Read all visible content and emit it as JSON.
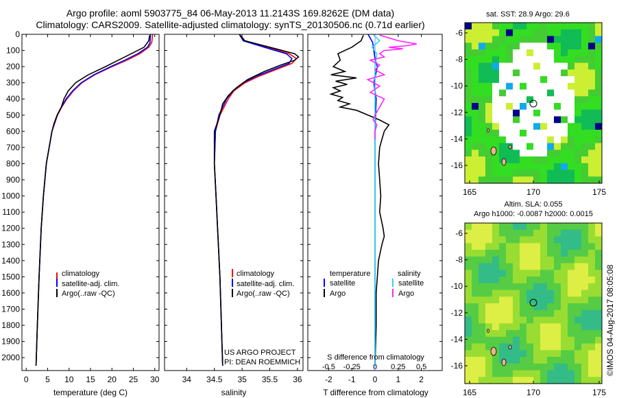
{
  "header": {
    "line1": "Argo profile: aoml 5903775_84 06-May-2013 11.2143S 169.8262E (DM data)",
    "line2": "Climatology: CARS2009. Satellite-adjusted climatology: synTS_20130506.nc (0.71d earlier)"
  },
  "colors": {
    "climatology": "#ff0000",
    "satellite": "#0000ff",
    "argo": "#000000",
    "sal_satellite": "#22ddee",
    "sal_argo": "#ff22ff",
    "map_green": "#33cc33",
    "land": "#e8b48a"
  },
  "chart_data": [
    {
      "type": "line",
      "name": "temperature-profile",
      "xlabel": "temperature (deg C)",
      "ylabel": "",
      "xlim": [
        -1,
        31
      ],
      "ylim": [
        2080,
        0
      ],
      "xticks": [
        0,
        5,
        10,
        15,
        20,
        25,
        30
      ],
      "yticks": [
        0,
        100,
        200,
        300,
        400,
        500,
        600,
        700,
        800,
        900,
        1000,
        1100,
        1200,
        1300,
        1400,
        1500,
        1600,
        1700,
        1800,
        1900,
        2000
      ],
      "legend": [
        "climatology",
        "satellite-adj. clim.",
        "Argo(..raw -QC)"
      ],
      "series": [
        {
          "name": "climatology",
          "depth": [
            0,
            50,
            80,
            120,
            160,
            200,
            250,
            300,
            350,
            400,
            450,
            500,
            600,
            800,
            1000,
            1200,
            1500,
            1800,
            2050
          ],
          "values": [
            29.5,
            29.3,
            28.6,
            26.5,
            23.5,
            20,
            16,
            13,
            11,
            9.5,
            8.3,
            7.3,
            6,
            4.7,
            4,
            3.5,
            3,
            2.6,
            2.3
          ]
        },
        {
          "name": "satellite-adj. clim.",
          "depth": [
            0,
            50,
            80,
            120,
            160,
            200,
            250,
            300,
            350,
            400,
            450,
            500,
            600,
            800,
            1000,
            1200,
            1500,
            1800,
            2050
          ],
          "values": [
            29,
            28.9,
            28.3,
            26,
            23,
            19.7,
            15.8,
            12.8,
            10.8,
            9.3,
            8.2,
            7.2,
            6,
            4.7,
            4,
            3.5,
            3,
            2.6,
            2.3
          ]
        },
        {
          "name": "Argo(..raw -QC)",
          "depth": [
            5,
            40,
            80,
            120,
            160,
            200,
            250,
            300,
            350,
            400,
            450,
            500,
            550,
            600,
            800,
            1000,
            1200,
            1500,
            1800,
            2050
          ],
          "values": [
            28.8,
            28.6,
            27.5,
            24.5,
            21.5,
            18.5,
            14.5,
            11.5,
            9.8,
            8.8,
            8.2,
            7.2,
            6.5,
            6,
            4.7,
            4,
            3.5,
            3,
            2.6,
            2.3
          ]
        }
      ]
    },
    {
      "type": "line",
      "name": "salinity-profile",
      "xlabel": "salinity",
      "ylabel": "",
      "xlim": [
        33.6,
        36.1
      ],
      "ylim": [
        2080,
        0
      ],
      "xticks": [
        34,
        34.5,
        35,
        35.5,
        36
      ],
      "legend": [
        "climatology",
        "satellite-adj. clim.",
        "Argo(..raw -QC)"
      ],
      "series": [
        {
          "name": "climatology",
          "depth": [
            0,
            40,
            80,
            120,
            150,
            180,
            220,
            260,
            300,
            350,
            400,
            500,
            600,
            800,
            1000,
            1500,
            2050
          ],
          "values": [
            34.95,
            35.05,
            35.45,
            35.85,
            35.98,
            35.9,
            35.6,
            35.3,
            35.05,
            34.85,
            34.75,
            34.6,
            34.52,
            34.5,
            34.53,
            34.6,
            34.65
          ]
        },
        {
          "name": "satellite-adj. clim.",
          "depth": [
            0,
            40,
            80,
            120,
            150,
            180,
            220,
            260,
            300,
            350,
            400,
            500,
            600,
            800,
            1000,
            1500,
            2050
          ],
          "values": [
            34.95,
            35.02,
            35.4,
            35.8,
            35.9,
            35.85,
            35.55,
            35.25,
            35.02,
            34.83,
            34.72,
            34.58,
            34.52,
            34.5,
            34.53,
            34.6,
            34.65
          ]
        },
        {
          "name": "Argo(..raw -QC)",
          "depth": [
            0,
            40,
            80,
            120,
            140,
            160,
            190,
            230,
            280,
            330,
            380,
            430,
            500,
            600,
            620,
            700,
            800,
            1000,
            1500,
            2050
          ],
          "values": [
            34.95,
            35.05,
            35.5,
            35.95,
            36.02,
            35.95,
            35.7,
            35.4,
            35.1,
            34.9,
            34.75,
            34.65,
            34.6,
            34.5,
            34.5,
            34.5,
            34.5,
            34.53,
            34.6,
            34.65
          ]
        }
      ]
    },
    {
      "type": "line",
      "name": "difference-profile",
      "xlabel": "T difference from climatology",
      "x2label": "S difference from climatology",
      "xlim": [
        -2.9,
        2.9
      ],
      "x2lim": [
        -0.725,
        0.725
      ],
      "ylim": [
        2080,
        0
      ],
      "xticks": [
        -2,
        -1,
        0,
        1,
        2
      ],
      "xtick_labels": [
        "-2",
        "-1",
        "0",
        "1",
        "2"
      ],
      "x2ticks": [
        -0.5,
        -0.25,
        0,
        0.25,
        0.5
      ],
      "x2tick_labels": [
        "-0.5",
        "-0.25",
        "0",
        "0.25",
        "0.5"
      ],
      "legend_left_title": "temperature",
      "legend_right_title": "salinity",
      "legend_items": [
        "satellite",
        "Argo",
        "satellite",
        "Argo"
      ],
      "series": [
        {
          "name": "T satellite",
          "axis": "T",
          "depth": [
            0,
            50,
            100,
            150,
            200,
            300,
            400,
            600,
            800,
            1000,
            1500,
            2050
          ],
          "values": [
            -0.3,
            -0.1,
            -0.05,
            0,
            0.1,
            -0.05,
            0.05,
            0,
            0,
            0,
            0,
            0
          ]
        },
        {
          "name": "T Argo",
          "axis": "T",
          "depth": [
            5,
            40,
            80,
            120,
            160,
            200,
            230,
            250,
            270,
            290,
            310,
            330,
            350,
            370,
            390,
            410,
            430,
            450,
            470,
            500,
            530,
            560,
            600,
            650,
            700,
            800,
            900,
            1000,
            1100,
            1200,
            1250,
            1300,
            1400,
            1500,
            1600,
            1800,
            2050
          ],
          "values": [
            -0.5,
            -0.6,
            -1,
            -1.6,
            -1.5,
            -1.8,
            -1.3,
            -1.9,
            -0.8,
            -1.7,
            -1.2,
            -1.8,
            -1.5,
            -1.9,
            -1.4,
            -1.6,
            -1.1,
            -1.5,
            -0.8,
            -0.3,
            0.2,
            0.6,
            0.4,
            0.3,
            0.2,
            0.15,
            0.2,
            0.25,
            0.2,
            0.35,
            0.4,
            0.3,
            0.15,
            0.1,
            0.05,
            0.05,
            0
          ]
        },
        {
          "name": "S satellite",
          "axis": "S",
          "depth": [
            0,
            40,
            80,
            120,
            200,
            300,
            500,
            800,
            1200,
            2050
          ],
          "values": [
            -0.02,
            0.05,
            -0.03,
            0.02,
            0,
            0,
            0,
            0,
            0,
            0
          ]
        },
        {
          "name": "S Argo",
          "axis": "S",
          "depth": [
            5,
            40,
            60,
            70,
            80,
            90,
            100,
            120,
            140,
            160,
            190,
            220,
            250,
            280,
            320,
            360,
            400,
            450,
            500,
            530,
            560,
            600,
            650
          ],
          "values": [
            0.05,
            0.25,
            0.45,
            0.35,
            0.15,
            0.3,
            0.1,
            0.05,
            0.1,
            -0.05,
            0.05,
            0,
            0.1,
            -0.08,
            0.05,
            -0.05,
            0.1,
            0.05,
            0,
            -0.02,
            0.02,
            0,
            0
          ]
        }
      ]
    }
  ],
  "maps": {
    "sst": {
      "title": "sat. SST: 28.9 Argo: 29.6",
      "xticks": [
        "165",
        "170",
        "175"
      ],
      "yticks": [
        "-6",
        "-8",
        "-10",
        "-12",
        "-14",
        "-16"
      ]
    },
    "sla": {
      "title1": "Altim. SLA: 0.055",
      "title2": "Argo h1000: -0.0087 h2000: 0.0015",
      "xticks": [
        "165",
        "170",
        "175"
      ],
      "yticks": [
        "-6",
        "-8",
        "-10",
        "-12",
        "-14",
        "-16"
      ]
    }
  },
  "annotations": {
    "project": "US ARGO PROJECT",
    "pi": "PI: DEAN ROEMMICH",
    "stamp": "©IMOS 04-Aug-2017 08:05:08"
  }
}
